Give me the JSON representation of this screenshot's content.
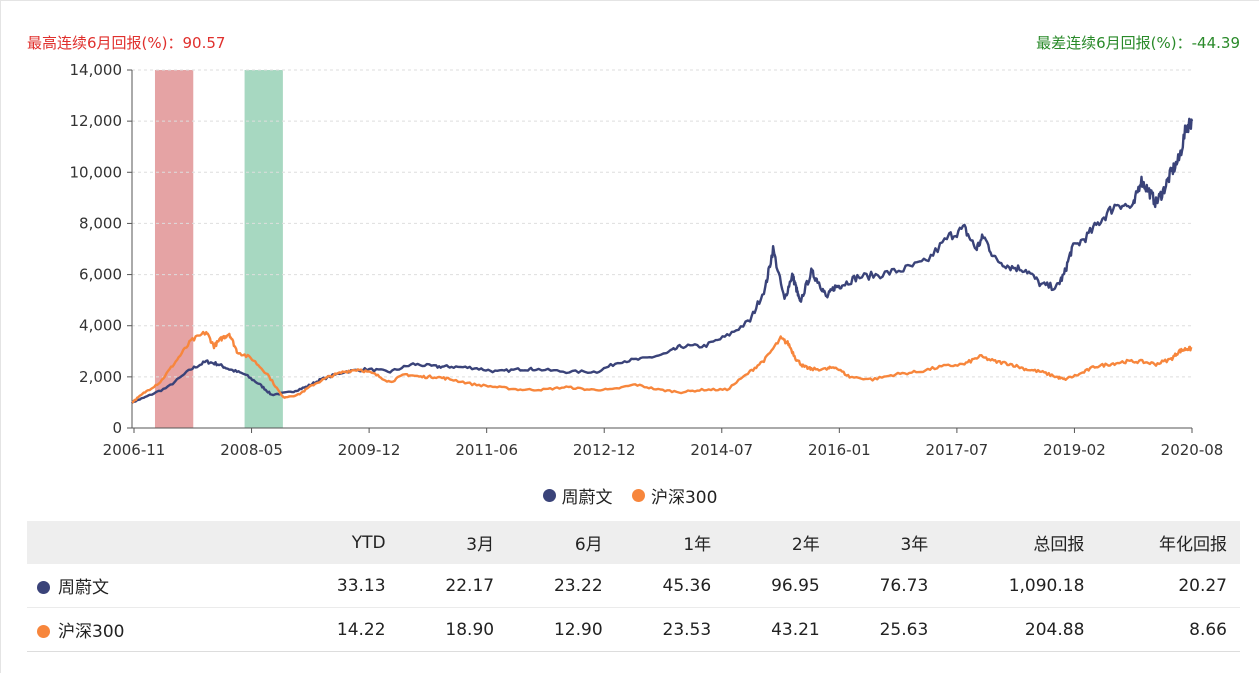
{
  "stats": {
    "best_label": "最高连续6月回报(%)：",
    "best_value": "90.57",
    "worst_label": "最差连续6月回报(%)：",
    "worst_value": "-44.39"
  },
  "colors": {
    "fund": "#3a4379",
    "index": "#f7863c",
    "best_band": "#e5a3a4",
    "worst_band": "#a7d8c1",
    "best_text": "#e0302d",
    "worst_text": "#2a8a2a"
  },
  "chart_data": {
    "type": "line",
    "x_ticks": [
      "2006-11",
      "2008-05",
      "2009-12",
      "2011-06",
      "2012-12",
      "2014-07",
      "2016-01",
      "2017-07",
      "2019-02",
      "2020-08"
    ],
    "y_ticks": [
      "0",
      "2,000",
      "4,000",
      "6,000",
      "8,000",
      "10,000",
      "12,000",
      "14,000"
    ],
    "ylim": [
      0,
      14000
    ],
    "xlim": [
      2006.83,
      2020.67
    ],
    "grid": true,
    "legend_position": "bottom-center",
    "highlight_bands": [
      {
        "label": "最高连续6月回报",
        "start": 2007.13,
        "end": 2007.63
      },
      {
        "label": "最差连续6月回报",
        "start": 2008.3,
        "end": 2008.8
      }
    ],
    "series": [
      {
        "name": "周蔚文",
        "x": [
          2006.83,
          2007.0,
          2007.3,
          2007.6,
          2007.8,
          2007.95,
          2008.1,
          2008.3,
          2008.5,
          2008.65,
          2008.9,
          2009.1,
          2009.3,
          2009.6,
          2009.9,
          2010.2,
          2010.5,
          2010.8,
          2011.0,
          2011.3,
          2011.6,
          2011.9,
          2012.1,
          2012.5,
          2012.9,
          2013.2,
          2013.5,
          2013.8,
          2014.0,
          2014.3,
          2014.6,
          2014.9,
          2015.1,
          2015.2,
          2015.35,
          2015.45,
          2015.5,
          2015.55,
          2015.7,
          2015.8,
          2015.9,
          2016.0,
          2016.1,
          2016.3,
          2016.6,
          2016.9,
          2017.2,
          2017.5,
          2017.7,
          2017.85,
          2017.95,
          2018.1,
          2018.3,
          2018.5,
          2018.7,
          2018.9,
          2019.0,
          2019.1,
          2019.3,
          2019.5,
          2019.7,
          2019.9,
          2020.0,
          2020.1,
          2020.2,
          2020.3,
          2020.4,
          2020.5,
          2020.6,
          2020.67
        ],
        "values": [
          1000,
          1200,
          1600,
          2300,
          2600,
          2500,
          2300,
          2100,
          1700,
          1300,
          1400,
          1600,
          1900,
          2200,
          2300,
          2200,
          2500,
          2400,
          2400,
          2350,
          2200,
          2300,
          2300,
          2200,
          2200,
          2600,
          2700,
          2900,
          3200,
          3200,
          3600,
          4200,
          5500,
          7000,
          5000,
          6000,
          5500,
          4900,
          6100,
          5700,
          5100,
          5500,
          5600,
          5900,
          6000,
          6200,
          6500,
          7500,
          7800,
          7000,
          7500,
          6600,
          6300,
          6200,
          5600,
          5500,
          6000,
          7000,
          7500,
          8200,
          8800,
          8600,
          9700,
          9300,
          8800,
          9300,
          10000,
          10500,
          11800,
          12000
        ]
      },
      {
        "name": "沪深300",
        "x": [
          2006.83,
          2007.0,
          2007.2,
          2007.4,
          2007.6,
          2007.8,
          2007.9,
          2008.0,
          2008.1,
          2008.2,
          2008.4,
          2008.6,
          2008.8,
          2009.0,
          2009.2,
          2009.4,
          2009.6,
          2009.8,
          2010.0,
          2010.2,
          2010.4,
          2010.6,
          2010.8,
          2011.0,
          2011.3,
          2011.6,
          2011.9,
          2012.2,
          2012.5,
          2012.8,
          2013.1,
          2013.4,
          2013.7,
          2014.0,
          2014.3,
          2014.6,
          2014.9,
          2015.1,
          2015.3,
          2015.4,
          2015.5,
          2015.6,
          2015.7,
          2015.9,
          2016.0,
          2016.2,
          2016.5,
          2016.8,
          2017.1,
          2017.4,
          2017.7,
          2017.9,
          2018.1,
          2018.3,
          2018.5,
          2018.7,
          2018.9,
          2019.0,
          2019.2,
          2019.4,
          2019.6,
          2019.8,
          2020.0,
          2020.2,
          2020.4,
          2020.5,
          2020.6,
          2020.67
        ],
        "values": [
          1000,
          1400,
          1800,
          2600,
          3400,
          3750,
          3200,
          3500,
          3700,
          3000,
          2700,
          2100,
          1200,
          1300,
          1700,
          2000,
          2200,
          2300,
          2100,
          1800,
          2100,
          2000,
          2000,
          1900,
          1700,
          1600,
          1500,
          1500,
          1600,
          1500,
          1500,
          1700,
          1500,
          1400,
          1500,
          1500,
          2200,
          2700,
          3500,
          3300,
          2700,
          2400,
          2300,
          2300,
          2400,
          2000,
          1900,
          2100,
          2200,
          2400,
          2500,
          2800,
          2600,
          2500,
          2300,
          2200,
          2000,
          1900,
          2100,
          2400,
          2500,
          2600,
          2600,
          2500,
          2700,
          3000,
          3100,
          3100
        ]
      }
    ]
  },
  "legend": {
    "items": [
      {
        "label": "周蔚文",
        "color": "#3a4379"
      },
      {
        "label": "沪深300",
        "color": "#f7863c"
      }
    ]
  },
  "table": {
    "headers": [
      "",
      "YTD",
      "3月",
      "6月",
      "1年",
      "2年",
      "3年",
      "总回报",
      "年化回报"
    ],
    "rows": [
      {
        "name": "周蔚文",
        "color": "#3a4379",
        "values": [
          "33.13",
          "22.17",
          "23.22",
          "45.36",
          "96.95",
          "76.73",
          "1,090.18",
          "20.27"
        ]
      },
      {
        "name": "沪深300",
        "color": "#f7863c",
        "values": [
          "14.22",
          "18.90",
          "12.90",
          "23.53",
          "43.21",
          "25.63",
          "204.88",
          "8.66"
        ]
      }
    ]
  }
}
